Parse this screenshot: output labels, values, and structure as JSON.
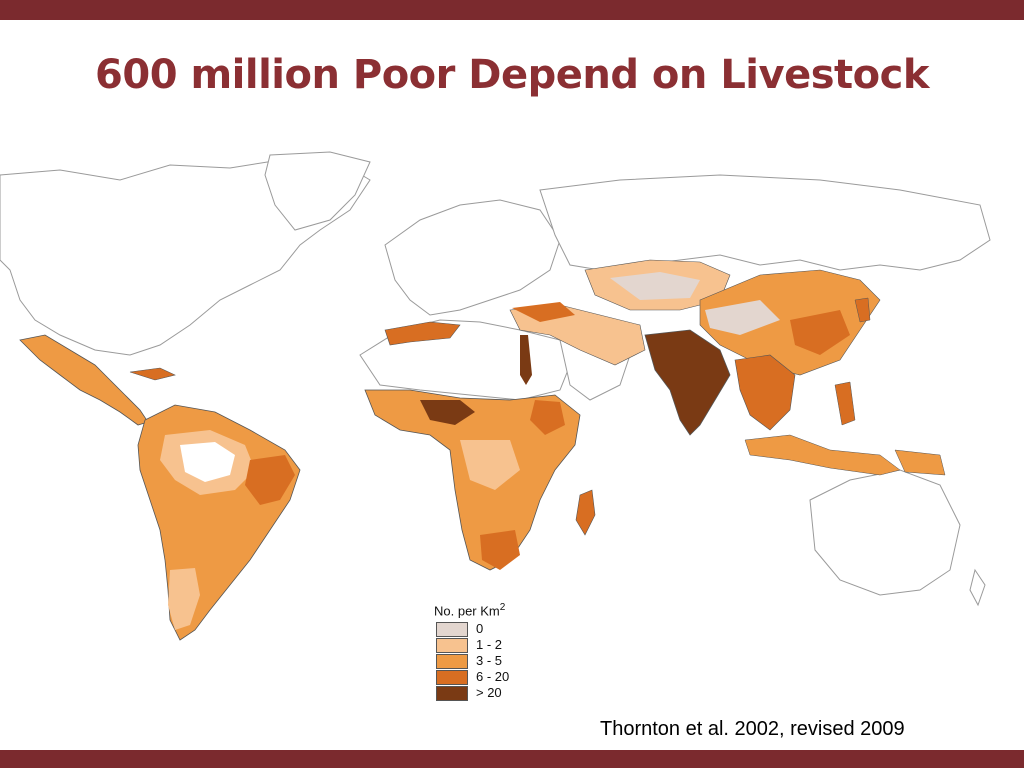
{
  "slide": {
    "title": "600 million Poor Depend on Livestock",
    "source": "Thornton et al. 2002, revised 2009",
    "accent_color": "#7b2a2e"
  },
  "legend": {
    "title": "No. per Km",
    "unit_superscript": "2",
    "items": [
      {
        "label": "0",
        "color": "#e3d6cf"
      },
      {
        "label": "1 - 2",
        "color": "#f7c28f"
      },
      {
        "label": "3 - 5",
        "color": "#ee9a44"
      },
      {
        "label": "6 - 20",
        "color": "#d86e22"
      },
      {
        "label": "> 20",
        "color": "#7a3a14"
      }
    ]
  }
}
